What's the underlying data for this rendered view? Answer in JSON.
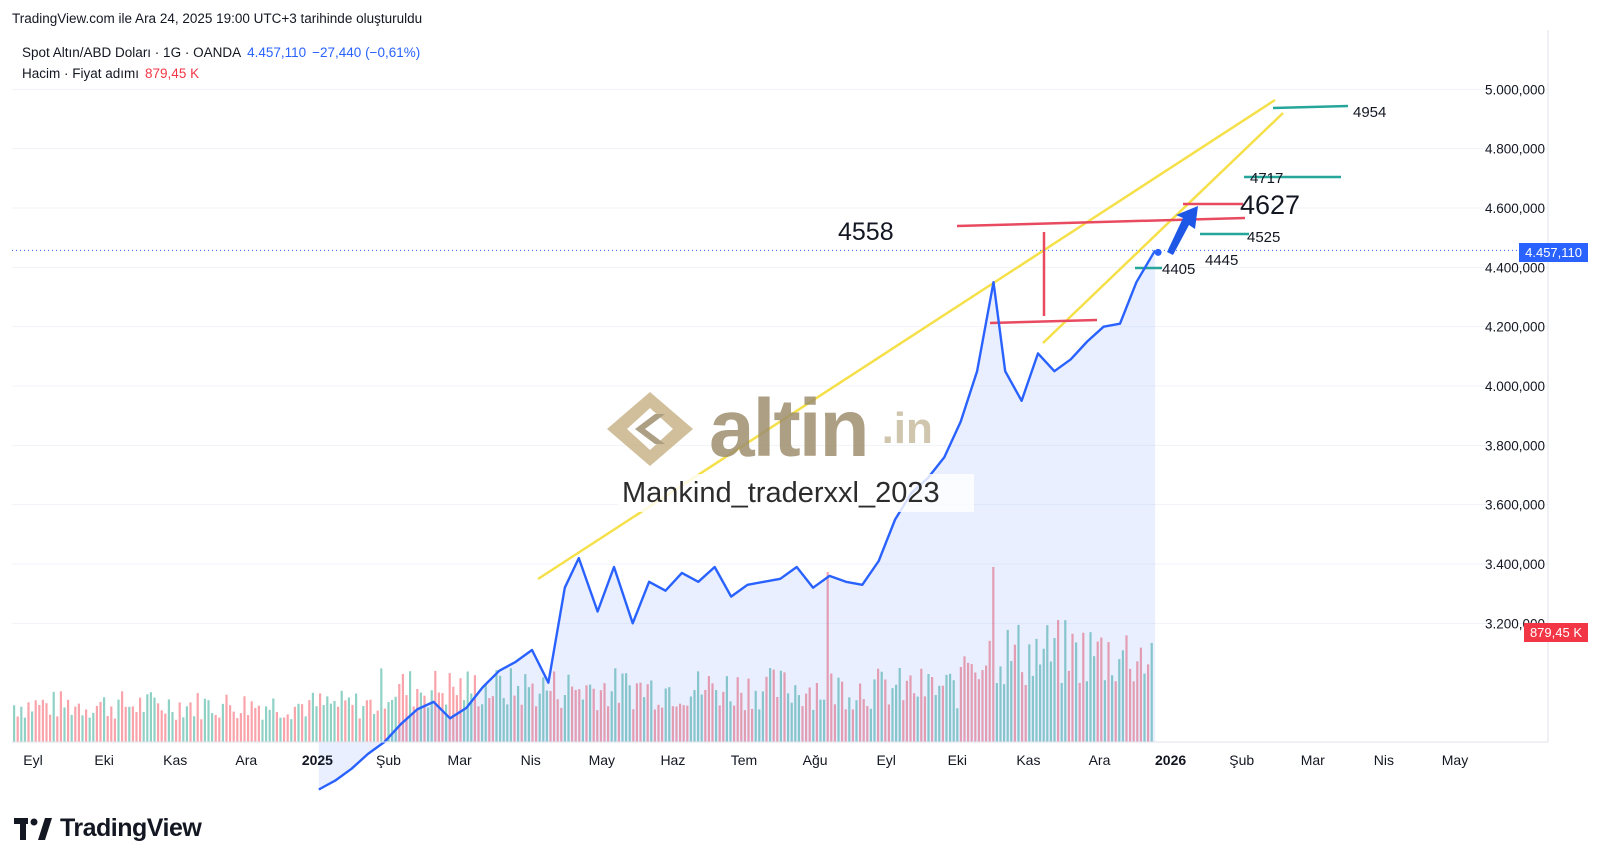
{
  "header": {
    "title": "TradingView.com ile Ara 24, 2025 19:00 UTC+3 tarihinde oluşturuldu"
  },
  "legend": {
    "symbol": "Spot Altın/ABD Doları · 1G · OANDA",
    "price": "4.457,110",
    "change": "−27,440 (−0,61%)",
    "volume_label": "Hacim · Fiyat adımı",
    "volume_value": "879,45 K"
  },
  "price_badge": {
    "value": "4.457,110",
    "color": "#2962ff"
  },
  "volume_badge": {
    "value": "879,45 K",
    "color": "#f23645"
  },
  "watermark": {
    "brand": "altin",
    "suffix": ".in",
    "author": "Mankind_traderxxl_2023"
  },
  "footer": {
    "brand": "TradingView"
  },
  "chart_data": {
    "type": "line",
    "title": "Spot Altın/ABD Doları",
    "y_ticks": [
      3200000,
      3400000,
      3600000,
      3800000,
      4000000,
      4200000,
      4400000,
      4600000,
      4800000,
      5000000
    ],
    "y_tick_labels": [
      "3.200,000",
      "3.400,000",
      "3.600,000",
      "3.800,000",
      "4.000,000",
      "4.200,000",
      "4.400,000",
      "4.600,000",
      "4.800,000",
      "5.000,000"
    ],
    "ylim": [
      2800000,
      5200000
    ],
    "x_ticks": [
      "Eyl",
      "Eki",
      "Kas",
      "Ara",
      "2025",
      "Şub",
      "Mar",
      "Nis",
      "May",
      "Haz",
      "Tem",
      "Ağu",
      "Eyl",
      "Eki",
      "Kas",
      "Ara",
      "2026",
      "Şub",
      "Mar",
      "Nis",
      "May"
    ],
    "x_bold_ticks": [
      "2025",
      "2026"
    ],
    "series": [
      {
        "name": "Spot Altın/ABD Doları",
        "color": "#2962ff",
        "x": [
          "2025-01-01",
          "2025-01-08",
          "2025-01-15",
          "2025-01-22",
          "2025-01-29",
          "2025-02-05",
          "2025-02-12",
          "2025-02-19",
          "2025-02-26",
          "2025-03-05",
          "2025-03-12",
          "2025-03-19",
          "2025-03-26",
          "2025-04-02",
          "2025-04-09",
          "2025-04-16",
          "2025-04-22",
          "2025-04-30",
          "2025-05-07",
          "2025-05-15",
          "2025-05-22",
          "2025-05-29",
          "2025-06-05",
          "2025-06-12",
          "2025-06-19",
          "2025-06-26",
          "2025-07-03",
          "2025-07-10",
          "2025-07-17",
          "2025-07-24",
          "2025-07-31",
          "2025-08-07",
          "2025-08-14",
          "2025-08-21",
          "2025-08-28",
          "2025-09-04",
          "2025-09-11",
          "2025-09-18",
          "2025-09-25",
          "2025-10-02",
          "2025-10-09",
          "2025-10-16",
          "2025-10-21",
          "2025-10-28",
          "2025-11-04",
          "2025-11-11",
          "2025-11-18",
          "2025-11-25",
          "2025-12-02",
          "2025-12-09",
          "2025-12-16",
          "2025-12-24"
        ],
        "values": [
          2640,
          2670,
          2710,
          2760,
          2800,
          2860,
          2910,
          2935,
          2880,
          2915,
          2985,
          3040,
          3070,
          3110,
          3000,
          3320,
          3420,
          3240,
          3390,
          3200,
          3340,
          3310,
          3370,
          3340,
          3390,
          3290,
          3330,
          3340,
          3350,
          3390,
          3320,
          3360,
          3340,
          3330,
          3410,
          3550,
          3640,
          3690,
          3760,
          3880,
          4050,
          4350,
          4050,
          3950,
          4110,
          4050,
          4090,
          4150,
          4200,
          4210,
          4350,
          4457
        ]
      }
    ],
    "volume_series": {
      "name": "Hacim",
      "last_value": "879,45 K"
    },
    "annotations": [
      {
        "label": "4558",
        "value": 4558
      },
      {
        "label": "4627",
        "value": 4627
      },
      {
        "label": "4717",
        "value": 4717
      },
      {
        "label": "4954",
        "value": 4954
      },
      {
        "label": "4525",
        "value": 4525
      },
      {
        "label": "4445",
        "value": 4445
      },
      {
        "label": "4405",
        "value": 4405
      }
    ],
    "grid": true
  }
}
